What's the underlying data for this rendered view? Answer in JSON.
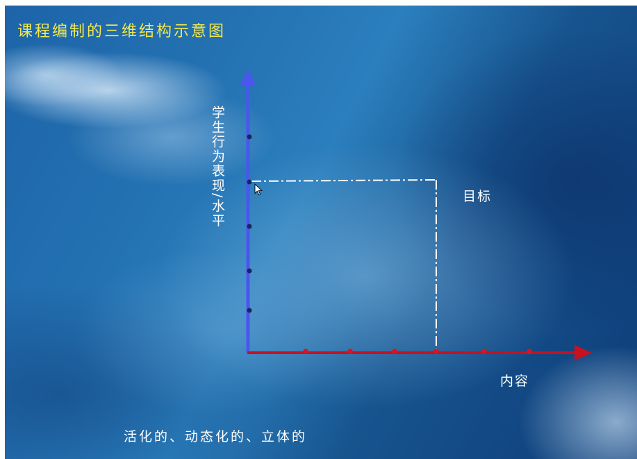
{
  "slide": {
    "title": "课程编制的三维结构示意图",
    "y_axis_label": "学生行为表现/水平",
    "x_axis_label": "内容",
    "target_label": "目标",
    "footer_text": "活化的、动态化的、立体的"
  },
  "colors": {
    "title": "#f4ea4e",
    "y_axis": "#4b56ee",
    "x_axis": "#c8101f",
    "y_axis_ticks": "#1c2460",
    "x_axis_ticks": "#d81424",
    "guide_line": "#ffffff"
  },
  "icons": {
    "cursor": "mouse-pointer-icon"
  }
}
